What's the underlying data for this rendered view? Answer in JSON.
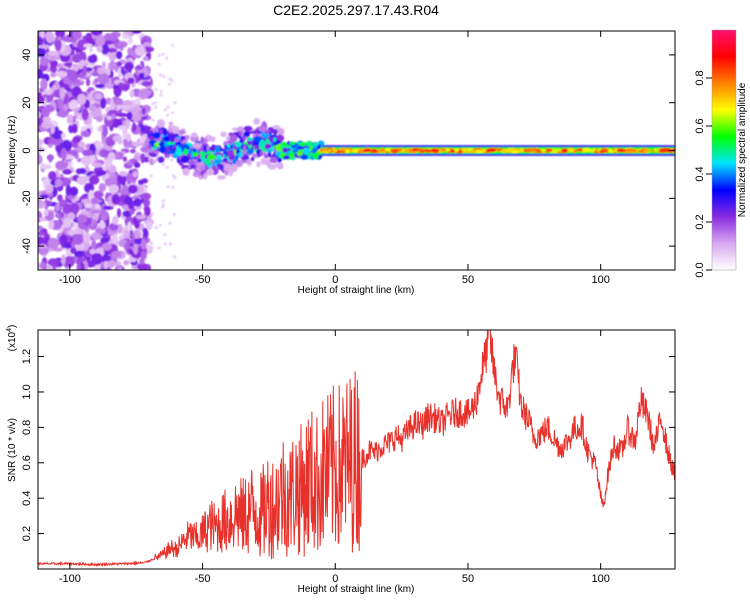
{
  "title": "C2E2.2025.297.17.43.R04",
  "chart_data": [
    {
      "type": "heatmap",
      "name": "spectrogram",
      "xlabel": "Height of straight line (km)",
      "ylabel": "Frequency (Hz)",
      "xlim": [
        -112,
        128
      ],
      "ylim": [
        -50,
        50
      ],
      "x_ticks": [
        "-100",
        "-50",
        "0",
        "50",
        "100"
      ],
      "x_tick_values": [
        -100,
        -50,
        0,
        50,
        100
      ],
      "y_ticks": [
        "40",
        "20",
        "0",
        "-20",
        "-40"
      ],
      "y_tick_values": [
        40,
        20,
        0,
        -20,
        -40
      ],
      "colorbar": {
        "label": "Normalized spectral amplitude",
        "range": [
          0,
          1
        ],
        "ticks": [
          "0.0",
          "0.2",
          "0.4",
          "0.6",
          "0.8"
        ],
        "tick_values": [
          0.0,
          0.2,
          0.4,
          0.6,
          0.8
        ],
        "colors": [
          "#ffffff",
          "#d8a8f0",
          "#8a2be2",
          "#0000ff",
          "#00e5ff",
          "#00ff00",
          "#ffff00",
          "#ff8000",
          "#ff0000",
          "#ff1070"
        ]
      },
      "regions": [
        {
          "desc": "broadband noise",
          "x_range": [
            -112,
            -70
          ],
          "freq_range": [
            -50,
            50
          ],
          "amplitude": 0.15
        },
        {
          "desc": "scattered signal",
          "x_range": [
            -70,
            -20
          ],
          "freq_range": [
            -10,
            10
          ],
          "amplitude": 0.5
        },
        {
          "desc": "zero-frequency ridge",
          "x_range": [
            -5,
            128
          ],
          "freq_range": [
            -1,
            1
          ],
          "amplitude": 0.9
        }
      ]
    },
    {
      "type": "line",
      "name": "snr",
      "xlabel": "Height of straight line (km)",
      "ylabel": "SNR (10 * v/v)",
      "y_exponent_label": "(x10",
      "y_exponent_power": "4",
      "y_exponent_close": ")",
      "xlim": [
        -112,
        128
      ],
      "ylim": [
        0,
        13500
      ],
      "x_ticks": [
        "-100",
        "-50",
        "0",
        "50",
        "100"
      ],
      "x_tick_values": [
        -100,
        -50,
        0,
        50,
        100
      ],
      "y_ticks": [
        "0.2",
        "0.4",
        "0.6",
        "0.8",
        "1.0",
        "1.2"
      ],
      "y_tick_values": [
        2000,
        4000,
        6000,
        8000,
        10000,
        12000
      ],
      "color": "#e8312b",
      "series": [
        {
          "name": "SNR",
          "x": [
            -112,
            -100,
            -90,
            -80,
            -72,
            -68,
            -65,
            -62,
            -60,
            -57,
            -55,
            -52,
            -50,
            -47,
            -45,
            -42,
            -40,
            -37,
            -35,
            -32,
            -30,
            -28,
            -25,
            -23,
            -20,
            -17,
            -15,
            -12,
            -10,
            -7,
            -5,
            -2,
            0,
            3,
            5,
            8,
            10,
            13,
            15,
            18,
            20,
            23,
            25,
            28,
            30,
            33,
            35,
            38,
            40,
            43,
            45,
            48,
            50,
            53,
            55,
            57,
            58,
            60,
            62,
            65,
            67,
            68,
            70,
            73,
            75,
            78,
            80,
            83,
            85,
            88,
            90,
            93,
            95,
            98,
            100,
            101,
            103,
            105,
            108,
            110,
            113,
            115,
            118,
            120,
            123,
            125,
            128
          ],
          "y": [
            300,
            300,
            250,
            300,
            350,
            600,
            800,
            1200,
            1100,
            1600,
            1900,
            1700,
            2000,
            2500,
            2300,
            2700,
            2800,
            3200,
            2900,
            3300,
            3400,
            3000,
            3800,
            3500,
            4300,
            4000,
            4600,
            4400,
            5100,
            4800,
            5300,
            5500,
            5700,
            5800,
            6000,
            6300,
            6200,
            6700,
            6600,
            7000,
            7100,
            7500,
            7300,
            7900,
            8200,
            8100,
            8600,
            8500,
            8200,
            8700,
            8800,
            8900,
            8700,
            9400,
            11000,
            12300,
            13500,
            11000,
            9600,
            9000,
            11500,
            12000,
            9200,
            8300,
            7400,
            7700,
            8000,
            7200,
            6800,
            7300,
            7900,
            8100,
            6700,
            5900,
            4100,
            3500,
            5600,
            7000,
            6600,
            7900,
            7200,
            9500,
            8500,
            6800,
            8600,
            6800,
            5200
          ]
        }
      ]
    }
  ]
}
